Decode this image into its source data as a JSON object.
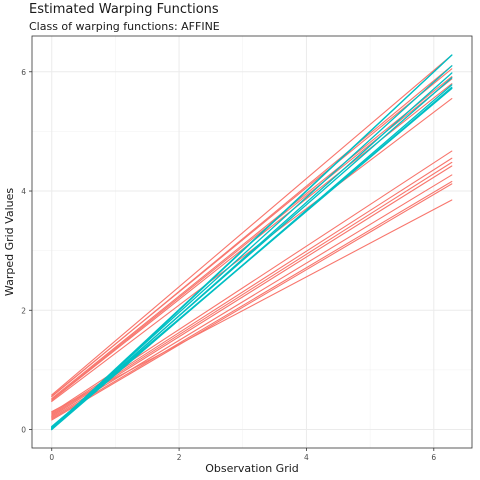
{
  "chart_data": {
    "type": "line",
    "title": "Estimated Warping Functions",
    "subtitle": "Class of warping functions: AFFINE",
    "xlabel": "Observation Grid",
    "ylabel": "Warped Grid Values",
    "xlim": [
      -0.31,
      6.6
    ],
    "ylim": [
      -0.31,
      6.6
    ],
    "xticks": [
      0,
      2,
      4,
      6
    ],
    "yticks": [
      0,
      2,
      4,
      6
    ],
    "grid": true,
    "legend": "none",
    "x": [
      0,
      6.283
    ],
    "colors": {
      "red": "#F8766D",
      "cyan": "#00BFC4"
    },
    "series": [
      {
        "color": "red",
        "values": [
          0.58,
          6.28
        ]
      },
      {
        "color": "red",
        "values": [
          0.55,
          6.1
        ]
      },
      {
        "color": "red",
        "values": [
          0.52,
          5.92
        ]
      },
      {
        "color": "red",
        "values": [
          0.5,
          5.88
        ]
      },
      {
        "color": "red",
        "values": [
          0.49,
          5.8
        ]
      },
      {
        "color": "red",
        "values": [
          0.47,
          5.55
        ]
      },
      {
        "color": "red",
        "values": [
          0.56,
          6.05
        ]
      },
      {
        "color": "red",
        "values": [
          0.28,
          4.67
        ]
      },
      {
        "color": "red",
        "values": [
          0.26,
          4.55
        ]
      },
      {
        "color": "red",
        "values": [
          0.24,
          4.48
        ]
      },
      {
        "color": "red",
        "values": [
          0.22,
          4.42
        ]
      },
      {
        "color": "red",
        "values": [
          0.2,
          4.27
        ]
      },
      {
        "color": "red",
        "values": [
          0.18,
          4.16
        ]
      },
      {
        "color": "red",
        "values": [
          0.16,
          4.12
        ]
      },
      {
        "color": "red",
        "values": [
          0.3,
          3.85
        ]
      },
      {
        "color": "cyan",
        "values": [
          0.0,
          6.28
        ]
      },
      {
        "color": "cyan",
        "values": [
          0.02,
          6.28
        ]
      },
      {
        "color": "cyan",
        "values": [
          0.03,
          6.1
        ]
      },
      {
        "color": "cyan",
        "values": [
          0.01,
          5.98
        ]
      },
      {
        "color": "cyan",
        "values": [
          0.04,
          5.9
        ]
      },
      {
        "color": "cyan",
        "values": [
          0.0,
          5.78
        ]
      },
      {
        "color": "cyan",
        "values": [
          0.02,
          5.74
        ]
      },
      {
        "color": "cyan",
        "values": [
          0.05,
          5.72
        ]
      }
    ]
  }
}
